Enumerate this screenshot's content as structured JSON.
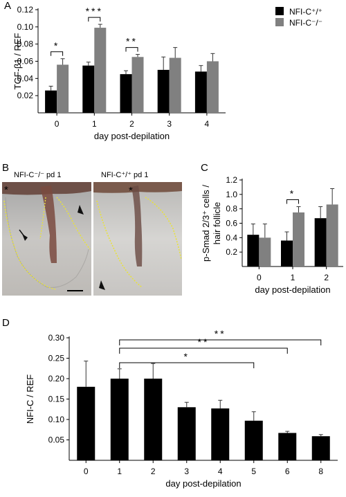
{
  "panels": {
    "a": "A",
    "b": "B",
    "c": "C",
    "d": "D"
  },
  "photo_labels": {
    "left": "NFI-C⁻/⁻ pd 1",
    "right": "NFI-C⁺/⁺ pd 1"
  },
  "colors": {
    "wt": "#000000",
    "ko": "#808080",
    "annotation_outline": "#e8e23c"
  },
  "chart_data": [
    {
      "panel": "A",
      "type": "bar",
      "categories": [
        "0",
        "1",
        "2",
        "3",
        "4"
      ],
      "xlabel": "day post-depilation",
      "ylabel": "TGF-β1 / REF",
      "ylim": [
        0.0,
        0.12
      ],
      "yticks": [
        "0.02",
        "0.04",
        "0.06",
        "0.08",
        "0.10",
        "0.12"
      ],
      "legend": "top-right",
      "series": [
        {
          "name": "NFI-C⁺/⁺",
          "values": [
            0.026,
            0.055,
            0.045,
            0.05,
            0.048
          ],
          "errors": [
            0.005,
            0.004,
            0.004,
            0.015,
            0.007
          ]
        },
        {
          "name": "NFI-C⁻/⁻",
          "values": [
            0.056,
            0.099,
            0.065,
            0.064,
            0.06
          ],
          "errors": [
            0.007,
            0.004,
            0.003,
            0.012,
            0.009
          ]
        }
      ],
      "significance": [
        {
          "category": "0",
          "label": "*"
        },
        {
          "category": "1",
          "label": "***"
        },
        {
          "category": "2",
          "label": "**"
        }
      ]
    },
    {
      "panel": "C",
      "type": "bar",
      "categories": [
        "0",
        "1",
        "2"
      ],
      "xlabel": "day post-depilation",
      "ylabel": "p-Smad 2/3⁺ cells / hair follicle",
      "ylim": [
        0.0,
        1.2
      ],
      "yticks": [
        "0.2",
        "0.4",
        "0.6",
        "0.8",
        "1.0",
        "1.2"
      ],
      "series": [
        {
          "name": "NFI-C⁺/⁺",
          "values": [
            0.44,
            0.36,
            0.67
          ],
          "errors": [
            0.15,
            0.12,
            0.16
          ]
        },
        {
          "name": "NFI-C⁻/⁻",
          "values": [
            0.4,
            0.75,
            0.86
          ],
          "errors": [
            0.19,
            0.08,
            0.22
          ]
        }
      ],
      "significance": [
        {
          "category": "1",
          "label": "*"
        }
      ]
    },
    {
      "panel": "D",
      "type": "bar",
      "categories": [
        "0",
        "1",
        "2",
        "3",
        "4",
        "5",
        "6",
        "8"
      ],
      "xlabel": "day post-depilation",
      "ylabel": "NFI-C / REF",
      "ylim": [
        0.0,
        0.3
      ],
      "yticks": [
        "0.05",
        "0.10",
        "0.15",
        "0.20",
        "0.25",
        "0.30"
      ],
      "series": [
        {
          "values": [
            0.18,
            0.2,
            0.2,
            0.13,
            0.127,
            0.097,
            0.067,
            0.059
          ],
          "errors": [
            0.063,
            0.024,
            0.037,
            0.012,
            0.02,
            0.022,
            0.004,
            0.004
          ]
        }
      ],
      "significance": [
        {
          "from": "1",
          "to": "8",
          "label": "**"
        },
        {
          "from": "1",
          "to": "6",
          "label": "**"
        },
        {
          "from": "1",
          "to": "5",
          "label": "*"
        }
      ]
    }
  ]
}
